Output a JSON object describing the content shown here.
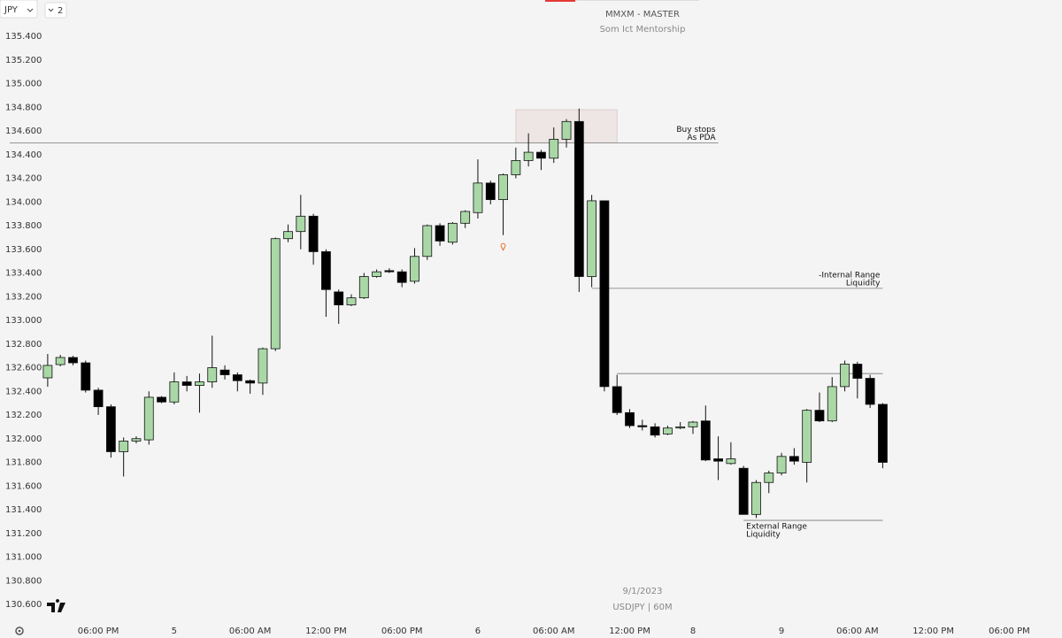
{
  "toolbar": {
    "symbol": "JPY",
    "layout_count": "2"
  },
  "chart_data": {
    "type": "candlestick",
    "title": "MMXM - MASTER",
    "subtitle": "Som Ict Mentorship",
    "date_label": "9/1/2023",
    "symbol_label": "USDJPY | 60M",
    "up_color": "#a9d8a6",
    "down_color": "#000000",
    "x": [
      0,
      1,
      2,
      3,
      4,
      5,
      6,
      7,
      8,
      9,
      10,
      11,
      12,
      13,
      14,
      15,
      16,
      17,
      18,
      19,
      20,
      21,
      22,
      23,
      24,
      25,
      26,
      27,
      28,
      29,
      30,
      31,
      32,
      33,
      34,
      35,
      36,
      37,
      38,
      39,
      40,
      41,
      42,
      43,
      44,
      45,
      46,
      47,
      48,
      49,
      50,
      51,
      52,
      53,
      54,
      55,
      56,
      57,
      58,
      59,
      60,
      61,
      62,
      63,
      64,
      65,
      66
    ],
    "open": [
      132.514,
      132.626,
      132.686,
      132.641,
      132.41,
      132.27,
      131.89,
      131.98,
      131.99,
      132.35,
      132.31,
      132.48,
      132.45,
      132.48,
      132.58,
      132.54,
      132.49,
      132.47,
      132.76,
      133.69,
      133.75,
      133.88,
      133.58,
      133.24,
      133.13,
      133.19,
      133.37,
      133.42,
      133.41,
      133.33,
      133.54,
      133.8,
      133.66,
      133.82,
      133.91,
      134.16,
      134.02,
      134.23,
      134.35,
      134.42,
      134.37,
      134.53,
      134.68,
      133.37,
      134.01,
      132.44,
      132.22,
      132.11,
      132.1,
      132.04,
      132.09,
      132.1,
      132.15,
      131.83,
      131.79,
      131.75,
      131.36,
      131.63,
      131.71,
      131.85,
      131.8,
      132.24,
      132.15,
      132.44,
      132.63,
      132.51,
      132.29
    ],
    "high": [
      132.716,
      132.708,
      132.7,
      132.66,
      132.43,
      132.29,
      132.01,
      132.02,
      132.4,
      132.36,
      132.56,
      132.53,
      132.55,
      132.87,
      132.62,
      132.56,
      132.5,
      132.77,
      133.7,
      133.81,
      134.06,
      133.9,
      133.6,
      133.26,
      133.22,
      133.4,
      133.43,
      133.44,
      133.43,
      133.61,
      133.81,
      133.82,
      133.83,
      133.93,
      134.36,
      134.18,
      134.24,
      134.46,
      134.58,
      134.44,
      134.63,
      134.7,
      134.79,
      134.06,
      134.01,
      132.54,
      132.25,
      132.16,
      132.13,
      132.11,
      132.14,
      132.15,
      132.28,
      132.02,
      131.97,
      131.77,
      131.65,
      131.73,
      131.88,
      131.92,
      132.25,
      132.39,
      132.52,
      132.66,
      132.65,
      132.54,
      132.3
    ],
    "low": [
      132.439,
      132.611,
      132.62,
      132.39,
      132.2,
      131.84,
      131.68,
      131.96,
      131.95,
      132.3,
      132.29,
      132.4,
      132.22,
      132.43,
      132.5,
      132.4,
      132.38,
      132.37,
      132.74,
      133.66,
      133.6,
      133.47,
      133.03,
      132.97,
      133.12,
      133.18,
      133.36,
      133.4,
      133.28,
      133.31,
      133.51,
      133.63,
      133.64,
      133.78,
      133.86,
      133.98,
      133.72,
      134.2,
      134.3,
      134.27,
      134.33,
      134.46,
      133.24,
      133.28,
      132.4,
      132.2,
      132.09,
      132.07,
      132.01,
      132.03,
      132.08,
      132.04,
      131.81,
      131.65,
      131.78,
      131.36,
      131.33,
      131.54,
      131.69,
      131.78,
      131.63,
      132.14,
      132.14,
      132.4,
      132.34,
      132.26,
      131.75
    ],
    "close": [
      132.619,
      132.686,
      132.641,
      132.41,
      132.27,
      131.89,
      131.98,
      132.0,
      132.35,
      132.31,
      132.48,
      132.45,
      132.48,
      132.6,
      132.54,
      132.49,
      132.47,
      132.76,
      133.69,
      133.75,
      133.88,
      133.58,
      133.26,
      133.13,
      133.19,
      133.37,
      133.41,
      133.41,
      133.32,
      133.54,
      133.8,
      133.67,
      133.82,
      133.92,
      134.16,
      134.02,
      134.23,
      134.35,
      134.42,
      134.37,
      134.53,
      134.68,
      133.37,
      134.01,
      132.44,
      132.22,
      132.11,
      132.1,
      132.03,
      132.09,
      132.1,
      132.14,
      131.82,
      131.81,
      131.83,
      131.36,
      131.63,
      131.71,
      131.85,
      131.81,
      132.24,
      132.15,
      132.44,
      132.63,
      132.51,
      132.29,
      131.8
    ],
    "xlim": [
      -3,
      78
    ],
    "xticks": [
      {
        "value": 4,
        "label": "06:00 PM"
      },
      {
        "value": 10,
        "label": "5"
      },
      {
        "value": 16,
        "label": "06:00 AM"
      },
      {
        "value": 22,
        "label": "12:00 PM"
      },
      {
        "value": 28,
        "label": "06:00 PM"
      },
      {
        "value": 34,
        "label": "6"
      },
      {
        "value": 40,
        "label": "06:00 AM"
      },
      {
        "value": 46,
        "label": "12:00 PM"
      },
      {
        "value": 51,
        "label": "8"
      },
      {
        "value": 58,
        "label": "9"
      },
      {
        "value": 64,
        "label": "06:00 AM"
      },
      {
        "value": 70,
        "label": "12:00 PM"
      },
      {
        "value": 76,
        "label": "06:00 PM"
      }
    ],
    "ylim": [
      130.6,
      135.4
    ],
    "yticks": [
      {
        "value": 135.4,
        "label": "135.400"
      },
      {
        "value": 135.2,
        "label": "135.200"
      },
      {
        "value": 135.0,
        "label": "135.000"
      },
      {
        "value": 134.8,
        "label": "134.800"
      },
      {
        "value": 134.6,
        "label": "134.600"
      },
      {
        "value": 134.4,
        "label": "134.400"
      },
      {
        "value": 134.2,
        "label": "134.200"
      },
      {
        "value": 134.0,
        "label": "134.000"
      },
      {
        "value": 133.8,
        "label": "133.800"
      },
      {
        "value": 133.6,
        "label": "133.600"
      },
      {
        "value": 133.4,
        "label": "133.400"
      },
      {
        "value": 133.2,
        "label": "133.200"
      },
      {
        "value": 133.0,
        "label": "133.000"
      },
      {
        "value": 132.8,
        "label": "132.800"
      },
      {
        "value": 132.6,
        "label": "132.600"
      },
      {
        "value": 132.4,
        "label": "132.400"
      },
      {
        "value": 132.2,
        "label": "132.200"
      },
      {
        "value": 132.0,
        "label": "132.000"
      },
      {
        "value": 131.8,
        "label": "131.800"
      },
      {
        "value": 131.6,
        "label": "131.600"
      },
      {
        "value": 131.4,
        "label": "131.400"
      },
      {
        "value": 131.2,
        "label": "131.200"
      },
      {
        "value": 131.0,
        "label": "131.000"
      },
      {
        "value": 130.8,
        "label": "130.800"
      },
      {
        "value": 130.6,
        "label": "130.600"
      }
    ],
    "zone": {
      "x": [
        37,
        45
      ],
      "y": [
        134.5,
        134.78
      ]
    },
    "levels": [
      {
        "value": 134.5,
        "x": [
          -3,
          53
        ],
        "label_lines": [
          "Buy stops",
          "As PDA"
        ],
        "label_side": "above-right"
      },
      {
        "value": 133.27,
        "x": [
          43,
          66
        ],
        "label_lines": [
          "-Internal Range",
          "Liquidity"
        ],
        "label_side": "above-right"
      },
      {
        "value": 132.55,
        "x": [
          45,
          66
        ]
      },
      {
        "value": 131.31,
        "x": [
          55,
          66
        ],
        "label_lines": [
          "External Range",
          "Liquidity"
        ],
        "label_side": "below-left"
      }
    ],
    "marker": {
      "x": 36,
      "value": 133.63,
      "color": "#e8702a"
    }
  }
}
